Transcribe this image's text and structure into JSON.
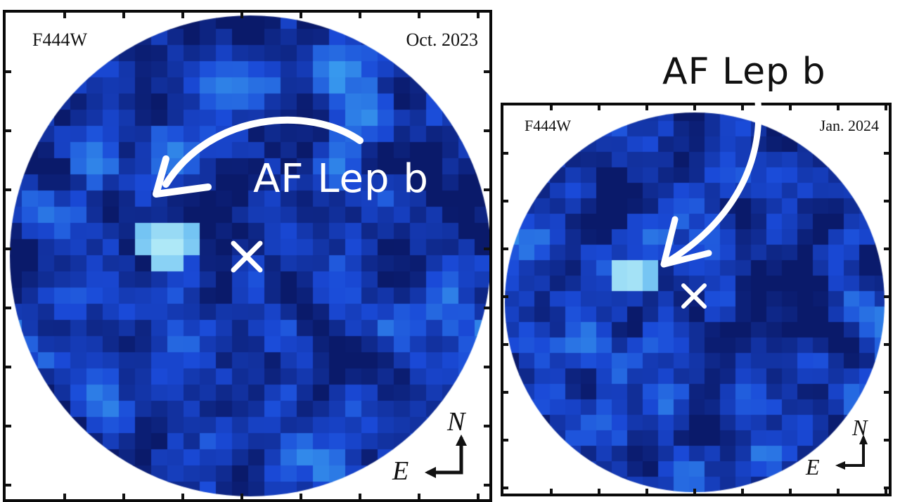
{
  "left_panel": {
    "filter": "F444W",
    "date": "Oct. 2023",
    "callout": "AF Lep b",
    "compass": {
      "north": "N",
      "east": "E"
    }
  },
  "right_panel": {
    "filter": "F444W",
    "date": "Jan. 2024",
    "callout": "AF Lep b",
    "compass": {
      "north": "N",
      "east": "E"
    }
  },
  "colors": {
    "background": "#ffffff",
    "frame": "#0a0a0a",
    "pixel_dark": "#0a1a6a",
    "pixel_mid": "#1a4ad8",
    "pixel_light": "#3aa0f0",
    "planet_highlight": "#c8f8f8",
    "arrow": "#ffffff"
  }
}
